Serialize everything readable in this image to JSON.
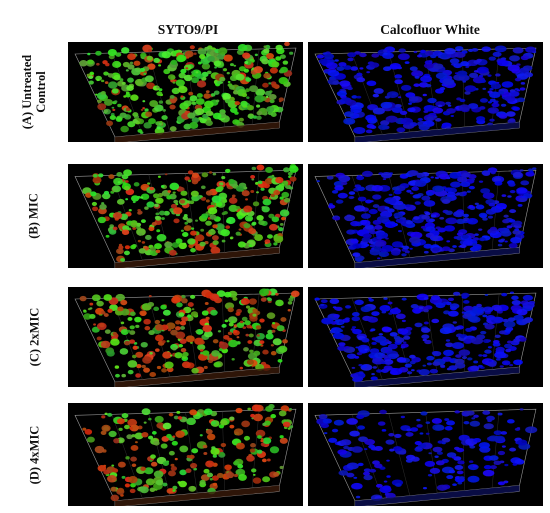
{
  "columns": {
    "left": "SYTO9/PI",
    "right": "Calcofluor White"
  },
  "rows": [
    {
      "label": "(A) Untreated\nControl",
      "green_density": 0.95,
      "red_density": 0.25,
      "blue_density": 0.7
    },
    {
      "label": "(B) MIC",
      "green_density": 0.85,
      "red_density": 0.4,
      "blue_density": 0.85
    },
    {
      "label": "(C) 2xMIC",
      "green_density": 0.55,
      "red_density": 0.55,
      "blue_density": 0.75
    },
    {
      "label": "(D) 4xMIC",
      "green_density": 0.45,
      "red_density": 0.45,
      "blue_density": 0.4
    }
  ],
  "colors": {
    "green": "#3fbf2a",
    "red": "#b83a1e",
    "blue": "#1a22e6",
    "background": "#000000",
    "box_line": "#9a9a9a"
  }
}
